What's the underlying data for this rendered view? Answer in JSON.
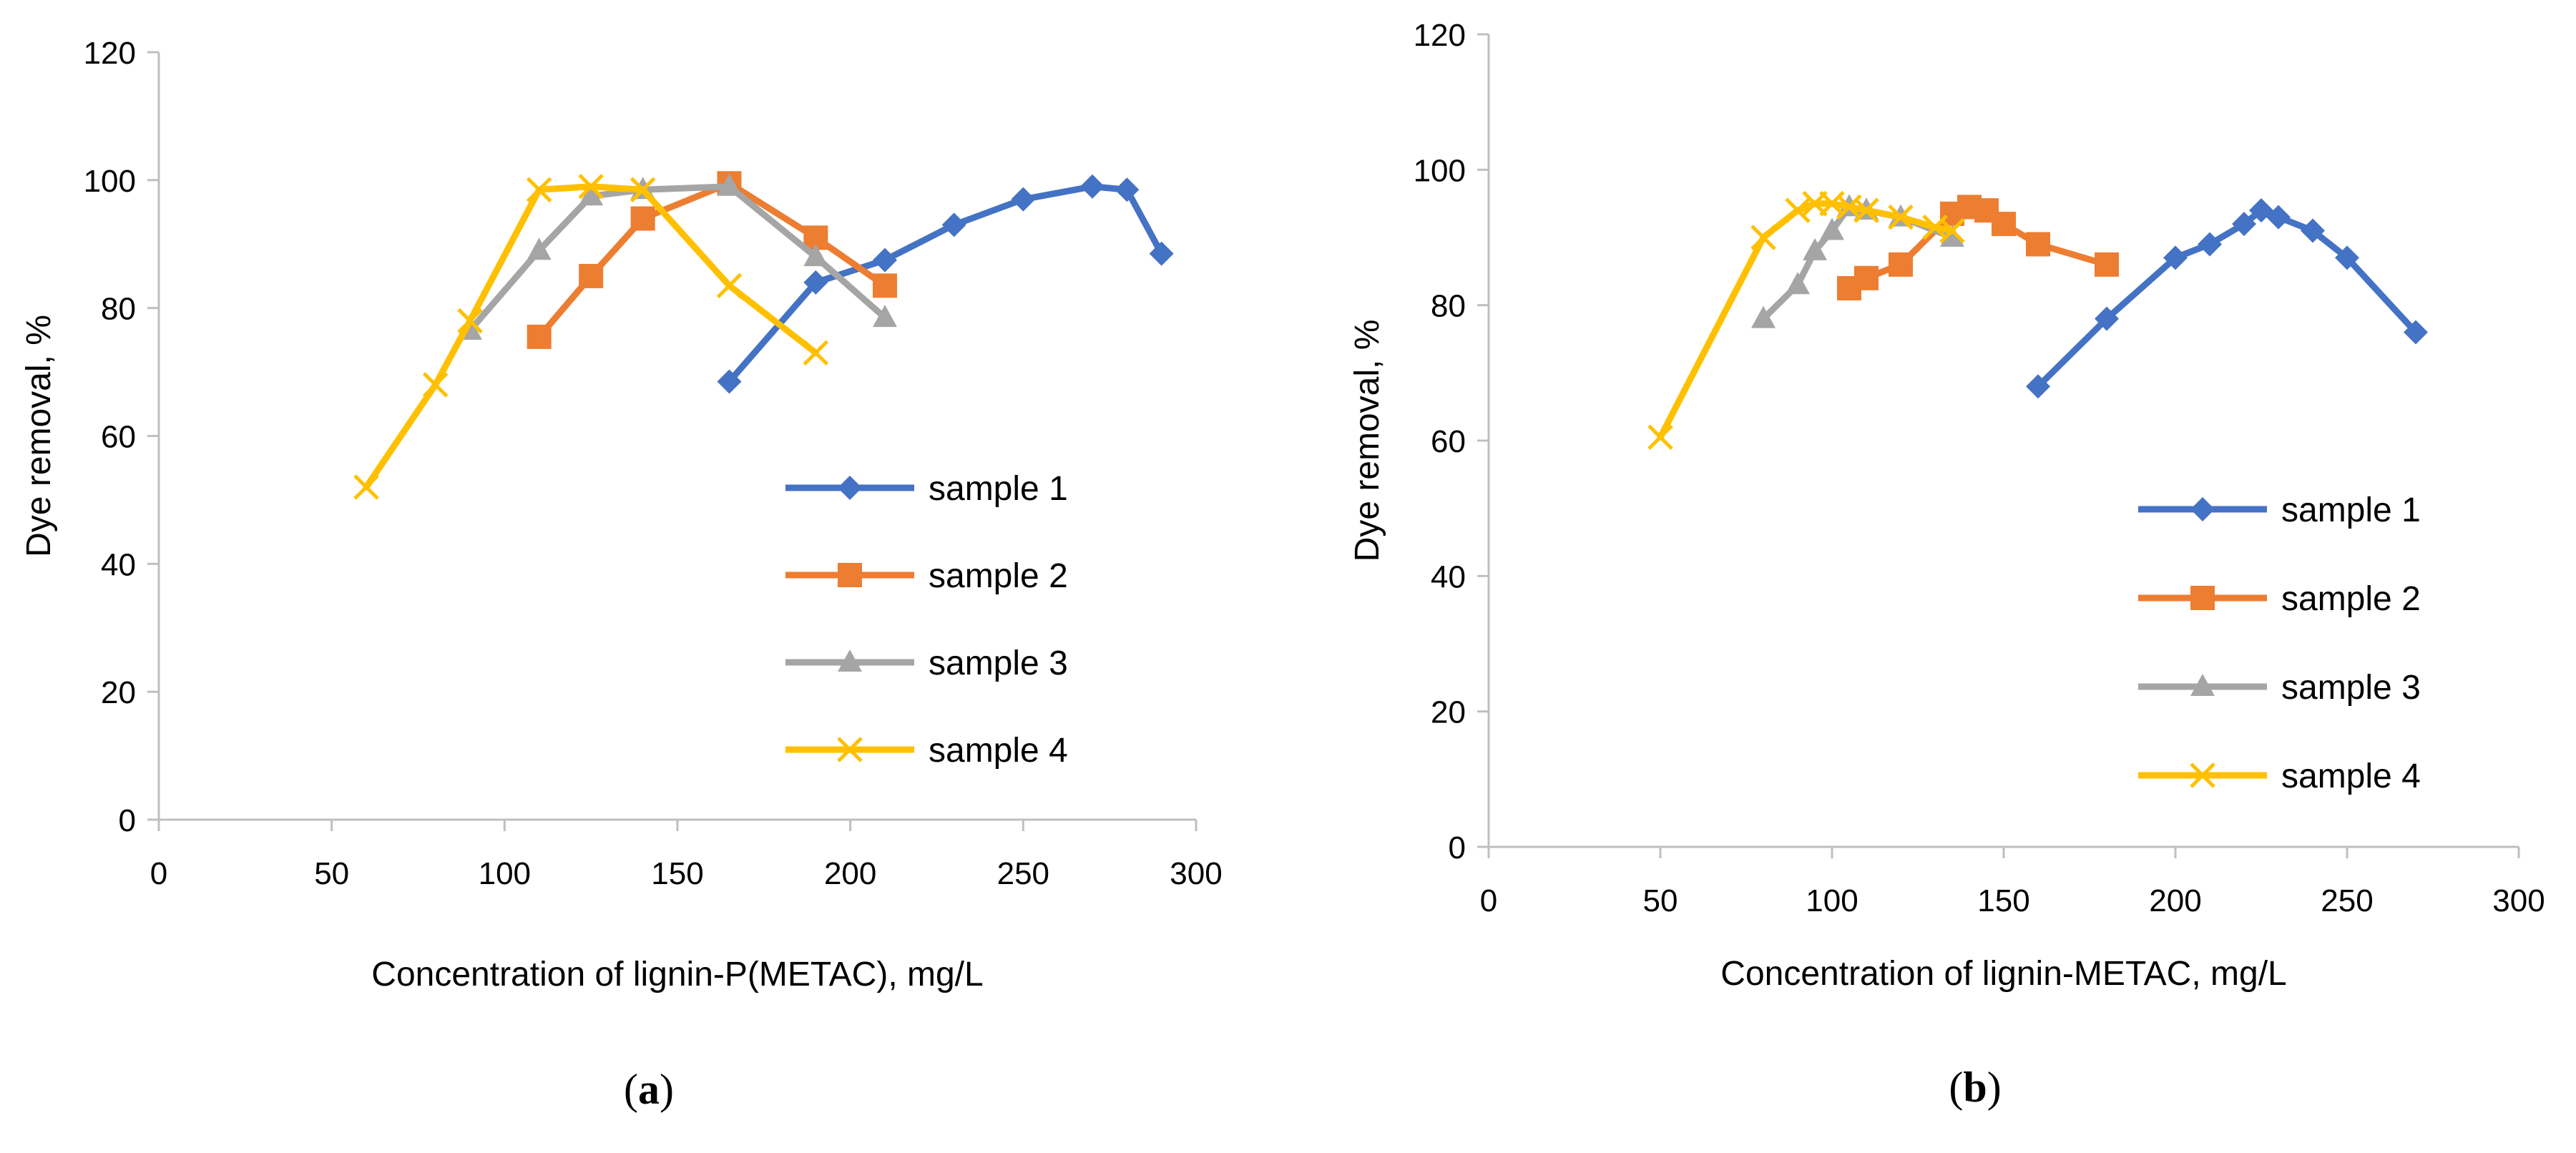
{
  "colors": {
    "sample 1": "#4472C4",
    "sample 2": "#ED7D31",
    "sample 3": "#A5A5A5",
    "sample 4": "#FFC000"
  },
  "markers": {
    "sample 1": "diamond",
    "sample 2": "square",
    "sample 3": "triangle",
    "sample 4": "x"
  },
  "chart_data": [
    {
      "id": "a",
      "type": "line",
      "caption_letter": "a",
      "xlabel": "Concentration of lignin-P(METAC), mg/L",
      "ylabel": "Dye removal, %",
      "xlim": [
        0,
        300
      ],
      "ylim": [
        0,
        120
      ],
      "xticks": [
        0,
        50,
        100,
        150,
        200,
        250,
        300
      ],
      "yticks": [
        0,
        20,
        40,
        60,
        80,
        100,
        120
      ],
      "grid": false,
      "legend_position": "right",
      "series": [
        {
          "name": "sample 1",
          "x": [
            165,
            190,
            210,
            230,
            250,
            270,
            280,
            290
          ],
          "y": [
            68.5,
            84,
            87.5,
            93,
            97,
            99,
            98.5,
            88.5
          ]
        },
        {
          "name": "sample 2",
          "x": [
            110,
            125,
            140,
            165,
            190,
            210
          ],
          "y": [
            75.5,
            85,
            94,
            99.5,
            91,
            83.5
          ]
        },
        {
          "name": "sample 3",
          "x": [
            90,
            110,
            125,
            140,
            165,
            190,
            210
          ],
          "y": [
            76.5,
            89,
            97.5,
            98.5,
            99,
            88,
            78.5
          ]
        },
        {
          "name": "sample 4",
          "x": [
            60,
            80,
            90,
            110,
            125,
            140,
            165,
            190
          ],
          "y": [
            52,
            68,
            78,
            98.5,
            99,
            98.5,
            83.5,
            73
          ]
        }
      ]
    },
    {
      "id": "b",
      "type": "line",
      "caption_letter": "b",
      "xlabel": "Concentration of lignin-METAC, mg/L",
      "ylabel": "Dye removal, %",
      "xlim": [
        0,
        300
      ],
      "ylim": [
        0,
        120
      ],
      "xticks": [
        0,
        50,
        100,
        150,
        200,
        250,
        300
      ],
      "yticks": [
        0,
        20,
        40,
        60,
        80,
        100,
        120
      ],
      "grid": false,
      "legend_position": "right",
      "series": [
        {
          "name": "sample 1",
          "x": [
            160,
            180,
            200,
            210,
            220,
            225,
            230,
            240,
            250,
            270
          ],
          "y": [
            68,
            78,
            87,
            89,
            92,
            94,
            93,
            91,
            87,
            76
          ]
        },
        {
          "name": "sample 2",
          "x": [
            105,
            110,
            120,
            135,
            140,
            145,
            150,
            160,
            180
          ],
          "y": [
            82.5,
            84,
            86,
            93.5,
            94.5,
            94,
            92,
            89,
            86
          ]
        },
        {
          "name": "sample 3",
          "x": [
            80,
            90,
            95,
            100,
            105,
            110,
            120,
            135
          ],
          "y": [
            78,
            83,
            88,
            91,
            94.5,
            94,
            93,
            90
          ]
        },
        {
          "name": "sample 4",
          "x": [
            50,
            80,
            90,
            95,
            100,
            105,
            110,
            120,
            130,
            135
          ],
          "y": [
            60.5,
            90,
            94,
            95,
            95,
            94.5,
            94,
            93,
            91.5,
            91
          ]
        }
      ]
    }
  ]
}
